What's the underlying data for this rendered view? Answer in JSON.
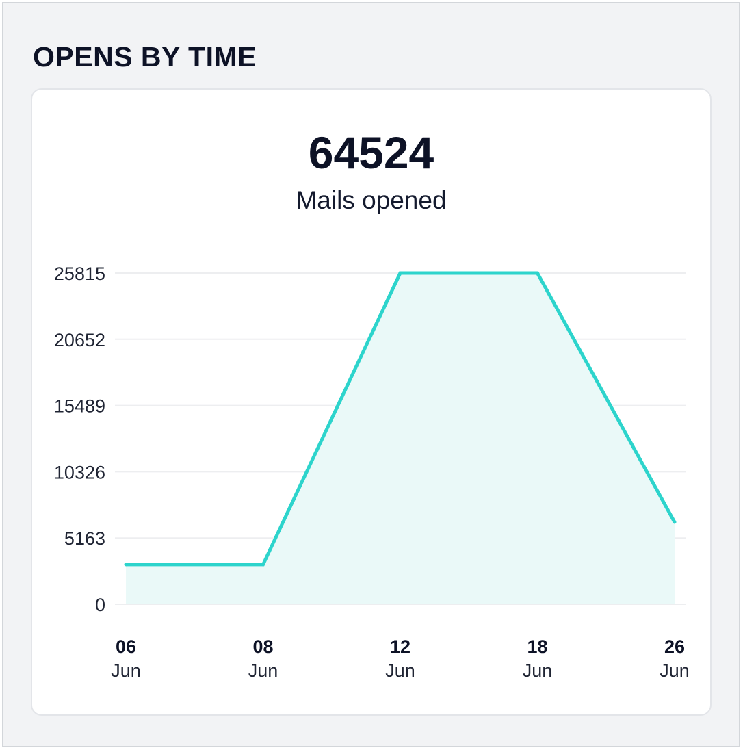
{
  "section": {
    "title": "OPENS BY TIME"
  },
  "summary": {
    "value": "64524",
    "label": "Mails opened"
  },
  "colors": {
    "line": "#2dd4cc",
    "area": "#eaf9f8",
    "grid": "#edeef0"
  },
  "chart_data": {
    "type": "area",
    "x": [
      {
        "day": "06",
        "month": "Jun"
      },
      {
        "day": "08",
        "month": "Jun"
      },
      {
        "day": "12",
        "month": "Jun"
      },
      {
        "day": "18",
        "month": "Jun"
      },
      {
        "day": "26",
        "month": "Jun"
      }
    ],
    "series": [
      {
        "values": [
          3100,
          3100,
          25815,
          25815,
          6400
        ]
      }
    ],
    "ylim": [
      0,
      25815
    ],
    "yticks": [
      0,
      5163,
      10326,
      15489,
      20652,
      25815
    ],
    "grid": true,
    "legend": "none"
  }
}
